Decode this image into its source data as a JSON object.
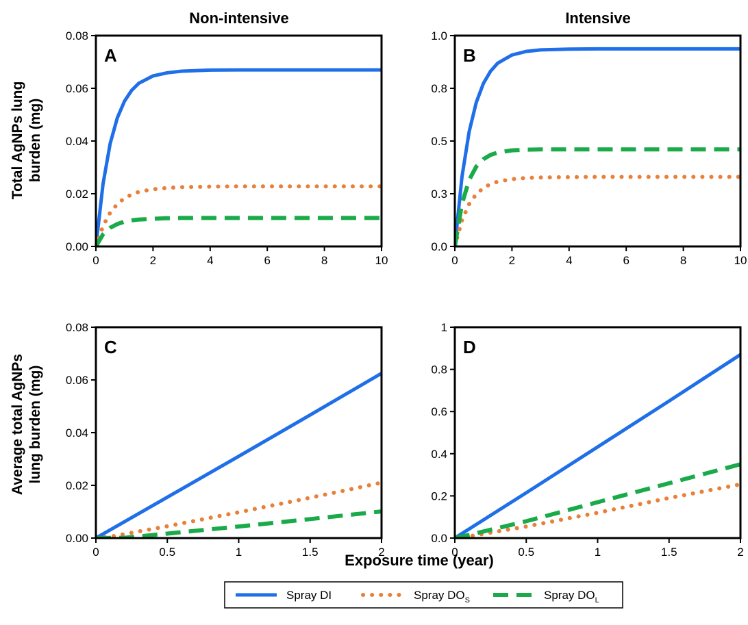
{
  "figure": {
    "column_titles": [
      "Non-intensive",
      "Intensive"
    ],
    "row_ylabels": [
      [
        "Total AgNPs lung",
        "burden (mg)"
      ],
      [
        "Average total AgNPs",
        "lung burden (mg)"
      ]
    ],
    "xlabel": "Exposure time (year)",
    "colors": {
      "Spray DI": "#1f6fe8",
      "Spray DOS": "#e8803a",
      "Spray DOL": "#1aaa4a"
    }
  },
  "legend": [
    {
      "key": "Spray DI",
      "label": "Spray DI",
      "sub": "",
      "style": "solid"
    },
    {
      "key": "Spray DOS",
      "label": "Spray DO",
      "sub": "S",
      "style": "dotted"
    },
    {
      "key": "Spray DOL",
      "label": "Spray DO",
      "sub": "L",
      "style": "dashed"
    }
  ],
  "chart_data": [
    {
      "panel": "A",
      "type": "line",
      "title": "Non-intensive",
      "xlim": [
        0,
        10
      ],
      "ylim": [
        0,
        0.08
      ],
      "xticks": [
        0,
        2,
        4,
        6,
        8,
        10
      ],
      "xtick_labels": [
        "0",
        "2",
        "4",
        "6",
        "8",
        "10"
      ],
      "yticks": [
        0,
        0.02,
        0.04,
        0.06,
        0.08
      ],
      "ytick_labels": [
        "0.00",
        "0.02",
        "0.04",
        "0.06",
        "0.08"
      ],
      "series": [
        {
          "name": "Spray DI",
          "x": [
            0,
            0.25,
            0.5,
            0.75,
            1,
            1.25,
            1.5,
            2,
            2.5,
            3,
            4,
            5,
            6,
            8,
            10
          ],
          "y": [
            0,
            0.0237,
            0.039,
            0.0488,
            0.0551,
            0.0592,
            0.0619,
            0.0647,
            0.0659,
            0.0665,
            0.0669,
            0.067,
            0.067,
            0.067,
            0.067
          ]
        },
        {
          "name": "Spray DOS",
          "x": [
            0,
            0.25,
            0.5,
            0.75,
            1,
            1.25,
            1.5,
            2,
            2.5,
            3,
            4,
            5,
            6,
            8,
            10
          ],
          "y": [
            0,
            0.0077,
            0.0128,
            0.0161,
            0.0183,
            0.0197,
            0.0207,
            0.0217,
            0.0222,
            0.0225,
            0.0227,
            0.0228,
            0.0228,
            0.0228,
            0.0228
          ]
        },
        {
          "name": "Spray DOL",
          "x": [
            0,
            0.25,
            0.5,
            0.75,
            1,
            1.25,
            1.5,
            2,
            2.5,
            3,
            4,
            5,
            6,
            8,
            10
          ],
          "y": [
            0,
            0.0046,
            0.0071,
            0.0085,
            0.0094,
            0.0099,
            0.0102,
            0.0105,
            0.0107,
            0.0108,
            0.0108,
            0.0108,
            0.0108,
            0.0108,
            0.0108
          ]
        }
      ]
    },
    {
      "panel": "B",
      "type": "line",
      "title": "Intensive",
      "xlim": [
        0,
        10
      ],
      "ylim": [
        0,
        1.0
      ],
      "xticks": [
        0,
        2,
        4,
        6,
        8,
        10
      ],
      "xtick_labels": [
        "0",
        "2",
        "4",
        "6",
        "8",
        "10"
      ],
      "yticks": [
        0,
        0.25,
        0.5,
        0.75,
        1.0
      ],
      "ytick_labels": [
        "0.0",
        "0.3",
        "0.5",
        "0.8",
        "1.0"
      ],
      "series": [
        {
          "name": "Spray DI",
          "x": [
            0,
            0.25,
            0.5,
            0.75,
            1,
            1.25,
            1.5,
            2,
            2.5,
            3,
            4,
            5,
            6,
            8,
            10
          ],
          "y": [
            0,
            0.33,
            0.544,
            0.683,
            0.773,
            0.831,
            0.869,
            0.908,
            0.925,
            0.932,
            0.936,
            0.937,
            0.937,
            0.937,
            0.937
          ]
        },
        {
          "name": "Spray DOS",
          "x": [
            0,
            0.25,
            0.5,
            0.75,
            1,
            1.25,
            1.5,
            2,
            2.5,
            3,
            4,
            5,
            6,
            8,
            10
          ],
          "y": [
            0,
            0.124,
            0.201,
            0.248,
            0.277,
            0.296,
            0.307,
            0.319,
            0.325,
            0.327,
            0.329,
            0.33,
            0.33,
            0.33,
            0.33
          ]
        },
        {
          "name": "Spray DOL",
          "x": [
            0,
            0.25,
            0.5,
            0.75,
            1,
            1.25,
            1.5,
            2,
            2.5,
            3,
            4,
            5,
            6,
            8,
            10
          ],
          "y": [
            0,
            0.202,
            0.315,
            0.379,
            0.414,
            0.434,
            0.445,
            0.456,
            0.459,
            0.46,
            0.46,
            0.46,
            0.46,
            0.46,
            0.46
          ]
        }
      ]
    },
    {
      "panel": "C",
      "type": "line",
      "title": "",
      "xlim": [
        0,
        2
      ],
      "ylim": [
        0,
        0.08
      ],
      "xticks": [
        0,
        0.5,
        1,
        1.5,
        2
      ],
      "xtick_labels": [
        "0",
        "0.5",
        "1",
        "1.5",
        "2"
      ],
      "yticks": [
        0,
        0.02,
        0.04,
        0.06,
        0.08
      ],
      "ytick_labels": [
        "0.00",
        "0.02",
        "0.04",
        "0.06",
        "0.08"
      ],
      "series": [
        {
          "name": "Spray DI",
          "x": [
            0,
            0.5,
            1,
            1.5,
            2
          ],
          "y": [
            0,
            0.0155,
            0.031,
            0.0467,
            0.0625
          ]
        },
        {
          "name": "Spray DOS",
          "x": [
            0,
            0.1,
            0.5,
            1,
            1.5,
            2
          ],
          "y": [
            0,
            0.0005,
            0.0045,
            0.0098,
            0.0153,
            0.021
          ]
        },
        {
          "name": "Spray DOL",
          "x": [
            0,
            0.2,
            0.5,
            1,
            1.5,
            2
          ],
          "y": [
            0,
            0.0001,
            0.0017,
            0.0044,
            0.0072,
            0.0101
          ]
        }
      ]
    },
    {
      "panel": "D",
      "type": "line",
      "title": "",
      "xlim": [
        0,
        2
      ],
      "ylim": [
        0,
        1
      ],
      "xticks": [
        0,
        0.5,
        1,
        1.5,
        2
      ],
      "xtick_labels": [
        "0",
        "0.5",
        "1",
        "1.5",
        "2"
      ],
      "yticks": [
        0,
        0.2,
        0.4,
        0.6,
        0.8,
        1
      ],
      "ytick_labels": [
        "0.0",
        "0.2",
        "0.4",
        "0.6",
        "0.8",
        "1"
      ],
      "series": [
        {
          "name": "Spray DI",
          "x": [
            0,
            0.5,
            1,
            1.5,
            2
          ],
          "y": [
            0,
            0.215,
            0.432,
            0.65,
            0.87
          ]
        },
        {
          "name": "Spray DOS",
          "x": [
            0,
            0.1,
            0.5,
            1,
            1.5,
            2
          ],
          "y": [
            0,
            0.008,
            0.055,
            0.12,
            0.19,
            0.255
          ]
        },
        {
          "name": "Spray DOL",
          "x": [
            0,
            0.1,
            0.5,
            1,
            1.5,
            2
          ],
          "y": [
            0,
            0.015,
            0.08,
            0.17,
            0.26,
            0.35
          ]
        }
      ]
    }
  ]
}
